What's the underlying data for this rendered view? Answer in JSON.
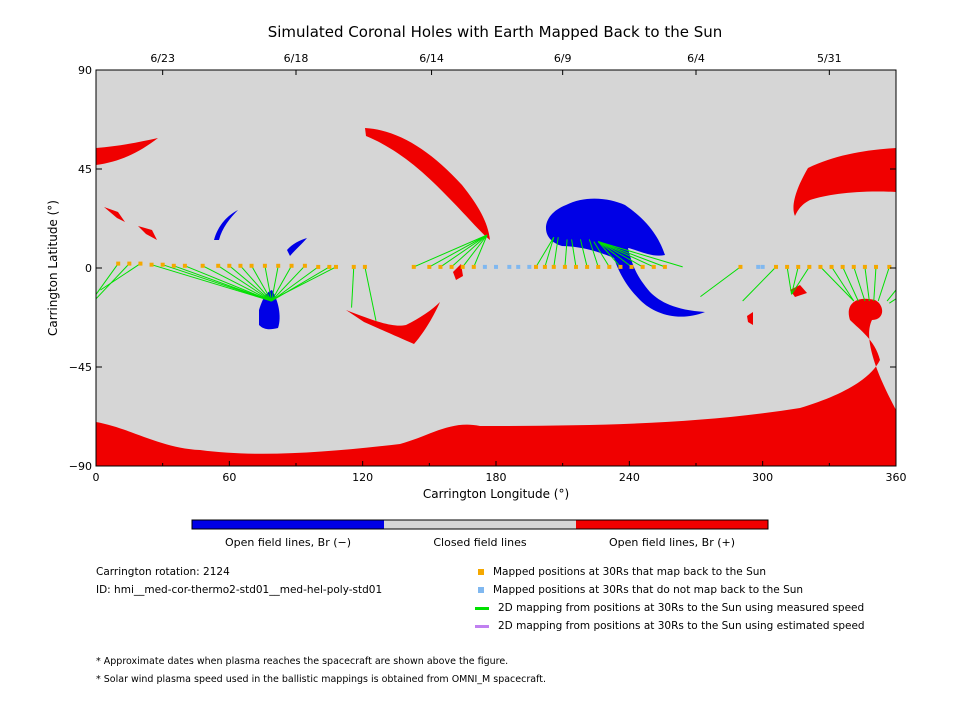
{
  "chart_data": {
    "type": "scatter",
    "title": "Simulated Coronal Holes with Earth Mapped Back to the Sun",
    "xlabel": "Carrington Longitude (°)",
    "ylabel": "Carrington Latitude (°)",
    "xlim": [
      0,
      360
    ],
    "ylim": [
      -90,
      90
    ],
    "x_ticks": [
      0,
      60,
      120,
      180,
      240,
      300,
      360
    ],
    "y_ticks": [
      90,
      45,
      0,
      -45,
      -90
    ],
    "y_tick_labels": [
      "90",
      "45",
      "0",
      "−45",
      "−90"
    ],
    "top_axis_dates": [
      {
        "label": "6/23",
        "lon": 30
      },
      {
        "label": "6/18",
        "lon": 90
      },
      {
        "label": "6/14",
        "lon": 151
      },
      {
        "label": "6/9",
        "lon": 210
      },
      {
        "label": "6/4",
        "lon": 270
      },
      {
        "label": "5/31",
        "lon": 330
      }
    ],
    "grid": false,
    "background_region": "Closed field lines",
    "colors": {
      "closed": "#d6d6d6",
      "open_negative": "#0000e6",
      "open_positive": "#f00000",
      "mapped": "#f5a800",
      "unmapped": "#80b8f0",
      "measured_line": "#00e000",
      "estimated_line": "#c080f0"
    },
    "mapped_points_30Rs": [
      [
        10,
        2
      ],
      [
        15,
        2
      ],
      [
        20,
        2
      ],
      [
        25,
        1.5
      ],
      [
        30,
        1.5
      ],
      [
        35,
        1
      ],
      [
        40,
        1
      ],
      [
        48,
        1
      ],
      [
        55,
        1
      ],
      [
        60,
        1
      ],
      [
        65,
        1
      ],
      [
        70,
        1
      ],
      [
        76,
        1
      ],
      [
        82,
        1
      ],
      [
        88,
        1
      ],
      [
        94,
        1
      ],
      [
        100,
        0.5
      ],
      [
        105,
        0.5
      ],
      [
        108,
        0.5
      ],
      [
        116,
        0.5
      ],
      [
        121,
        0.5
      ],
      [
        143,
        0.5
      ],
      [
        150,
        0.5
      ],
      [
        155,
        0.5
      ],
      [
        160,
        0.5
      ],
      [
        165,
        0.5
      ],
      [
        170,
        0.5
      ],
      [
        198,
        0.5
      ],
      [
        202,
        0.5
      ],
      [
        206,
        0.5
      ],
      [
        211,
        0.5
      ],
      [
        216,
        0.5
      ],
      [
        221,
        0.5
      ],
      [
        226,
        0.5
      ],
      [
        231,
        0.5
      ],
      [
        236,
        0.5
      ],
      [
        241,
        0.5
      ],
      [
        246,
        0.5
      ],
      [
        251,
        0.5
      ],
      [
        256,
        0.5
      ],
      [
        290,
        0.5
      ],
      [
        306,
        0.5
      ],
      [
        311,
        0.5
      ],
      [
        316,
        0.5
      ],
      [
        321,
        0.5
      ],
      [
        326,
        0.5
      ],
      [
        331,
        0.5
      ],
      [
        336,
        0.5
      ],
      [
        341,
        0.5
      ],
      [
        346,
        0.5
      ],
      [
        351,
        0.5
      ],
      [
        357,
        0.5
      ]
    ],
    "unmapped_points_30Rs": [
      [
        175,
        0.5
      ],
      [
        180,
        0.5
      ],
      [
        186,
        0.5
      ],
      [
        190,
        0.5
      ],
      [
        195,
        0.5
      ],
      [
        298,
        0.5
      ],
      [
        300,
        0.5
      ]
    ],
    "measured_speed_mappings": [
      [
        [
          0,
          -12
        ],
        [
          10,
          2
        ]
      ],
      [
        [
          0,
          -14
        ],
        [
          15,
          2
        ]
      ],
      [
        [
          2,
          -10
        ],
        [
          20,
          2
        ]
      ],
      [
        [
          79,
          -15
        ],
        [
          25,
          1.5
        ]
      ],
      [
        [
          79,
          -15
        ],
        [
          30,
          1.5
        ]
      ],
      [
        [
          79,
          -15
        ],
        [
          35,
          1
        ]
      ],
      [
        [
          79,
          -15
        ],
        [
          40,
          1
        ]
      ],
      [
        [
          79,
          -15
        ],
        [
          48,
          1
        ]
      ],
      [
        [
          79,
          -15
        ],
        [
          55,
          1
        ]
      ],
      [
        [
          79,
          -15
        ],
        [
          60,
          1
        ]
      ],
      [
        [
          79,
          -15
        ],
        [
          65,
          1
        ]
      ],
      [
        [
          79,
          -15
        ],
        [
          70,
          1
        ]
      ],
      [
        [
          79,
          -15
        ],
        [
          76,
          1
        ]
      ],
      [
        [
          79,
          -15
        ],
        [
          82,
          1
        ]
      ],
      [
        [
          79,
          -15
        ],
        [
          88,
          1
        ]
      ],
      [
        [
          79,
          -15
        ],
        [
          94,
          1
        ]
      ],
      [
        [
          79,
          -15
        ],
        [
          100,
          0.5
        ]
      ],
      [
        [
          79,
          -15
        ],
        [
          105,
          0.5
        ]
      ],
      [
        [
          80,
          -14
        ],
        [
          108,
          0.5
        ]
      ],
      [
        [
          115,
          -18
        ],
        [
          116,
          0.5
        ]
      ],
      [
        [
          126,
          -24
        ],
        [
          121,
          0.5
        ]
      ],
      [
        [
          176,
          15
        ],
        [
          143,
          0.5
        ]
      ],
      [
        [
          176,
          15
        ],
        [
          150,
          0.5
        ]
      ],
      [
        [
          176,
          15
        ],
        [
          155,
          0.5
        ]
      ],
      [
        [
          176,
          15
        ],
        [
          160,
          0.5
        ]
      ],
      [
        [
          176,
          15
        ],
        [
          165,
          0.5
        ]
      ],
      [
        [
          176,
          15
        ],
        [
          170,
          0.5
        ]
      ],
      [
        [
          206,
          14
        ],
        [
          198,
          0.5
        ]
      ],
      [
        [
          206,
          14
        ],
        [
          202,
          0.5
        ]
      ],
      [
        [
          208,
          14
        ],
        [
          206,
          0.5
        ]
      ],
      [
        [
          212,
          13
        ],
        [
          211,
          0.5
        ]
      ],
      [
        [
          214,
          13
        ],
        [
          216,
          0.5
        ]
      ],
      [
        [
          218,
          13
        ],
        [
          221,
          0.5
        ]
      ],
      [
        [
          222,
          13
        ],
        [
          226,
          0.5
        ]
      ],
      [
        [
          224,
          12
        ],
        [
          231,
          0.5
        ]
      ],
      [
        [
          226,
          12
        ],
        [
          236,
          0.5
        ]
      ],
      [
        [
          226,
          12
        ],
        [
          241,
          0.5
        ]
      ],
      [
        [
          226,
          12
        ],
        [
          246,
          0.5
        ]
      ],
      [
        [
          226,
          12
        ],
        [
          251,
          0.5
        ]
      ],
      [
        [
          226,
          12
        ],
        [
          256,
          0.5
        ]
      ],
      [
        [
          226,
          12
        ],
        [
          264,
          0.5
        ]
      ],
      [
        [
          272,
          -13
        ],
        [
          290,
          0.5
        ]
      ],
      [
        [
          291,
          -15
        ],
        [
          306,
          0.5
        ]
      ],
      [
        [
          313,
          -12
        ],
        [
          311,
          0.5
        ]
      ],
      [
        [
          313,
          -12
        ],
        [
          316,
          0.5
        ]
      ],
      [
        [
          313,
          -12
        ],
        [
          321,
          0.5
        ]
      ],
      [
        [
          341,
          -15
        ],
        [
          326,
          0.5
        ]
      ],
      [
        [
          341,
          -15
        ],
        [
          331,
          0.5
        ]
      ],
      [
        [
          343,
          -15
        ],
        [
          336,
          0.5
        ]
      ],
      [
        [
          346,
          -15
        ],
        [
          341,
          0.5
        ]
      ],
      [
        [
          348,
          -15
        ],
        [
          346,
          0.5
        ]
      ],
      [
        [
          350,
          -15
        ],
        [
          351,
          0.5
        ]
      ],
      [
        [
          352,
          -15
        ],
        [
          357,
          0.5
        ]
      ],
      [
        [
          360,
          -10
        ],
        [
          356,
          -15
        ]
      ],
      [
        [
          360,
          -14
        ],
        [
          357,
          -16
        ]
      ]
    ],
    "estimated_speed_mappings": []
  },
  "colorbar": {
    "labels": [
      "Open field lines, Br (−)",
      "Closed field lines",
      "Open field lines, Br (+)"
    ]
  },
  "info": {
    "rotation": "Carrington rotation: 2124",
    "id": "ID: hmi__med-cor-thermo2-std01__med-hel-poly-std01"
  },
  "legend": {
    "mapped": "Mapped positions at 30Rs that map back to the Sun",
    "unmapped": "Mapped positions at 30Rs that do not map back to the Sun",
    "measured": "2D mapping from positions at 30Rs to the Sun using measured speed",
    "estimated": "2D mapping from positions at 30Rs to the Sun using estimated speed"
  },
  "notes": [
    "* Approximate dates when plasma reaches the spacecraft are shown above the figure.",
    "* Solar wind plasma speed used in the ballistic mappings is obtained from OMNI_M spacecraft."
  ]
}
